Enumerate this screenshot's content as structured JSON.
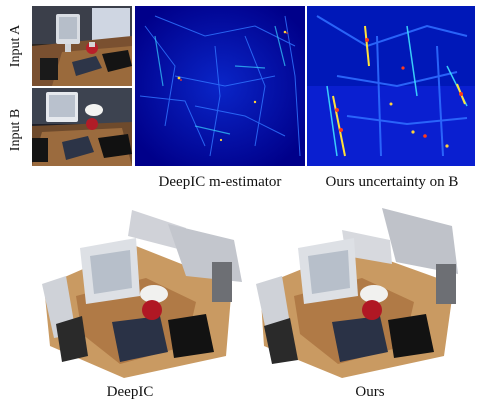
{
  "figure": {
    "row_labels": [
      "Input A",
      "Input B"
    ],
    "top_captions": [
      "DeepIC m-estimator",
      "Ours uncertainty on B"
    ],
    "bottom_captions": [
      "DeepIC",
      "Ours"
    ]
  },
  "colors": {
    "heatmap_base": "#00007a",
    "heatmap_mid": "#1f5bff",
    "heatmap_hot": "#ff3a1a",
    "desk_wood": "#a06a3a",
    "wall": "#e9ecf1"
  }
}
